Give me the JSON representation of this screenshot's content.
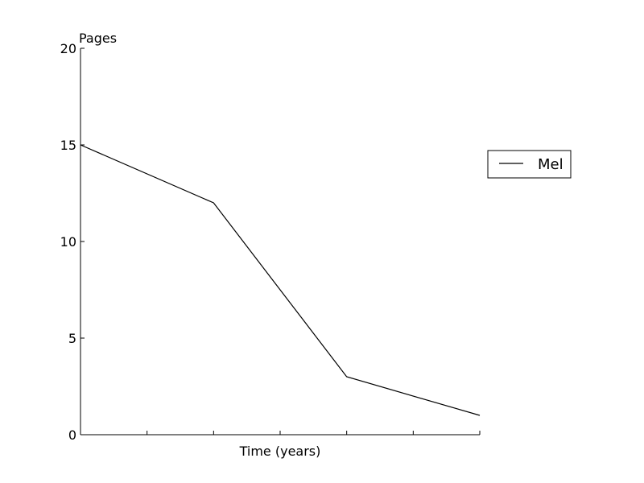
{
  "chart_data": {
    "type": "line",
    "title": "",
    "xlabel": "Time (years)",
    "ylabel": "Pages",
    "x": [
      0,
      1,
      2,
      3
    ],
    "xlim": [
      0,
      3
    ],
    "ylim": [
      0,
      20
    ],
    "yticks": [
      0,
      5,
      10,
      15,
      20
    ],
    "xticks": [
      0,
      0.5,
      1,
      1.5,
      2,
      2.5,
      3
    ],
    "x_tick_labels_shown": false,
    "grid": false,
    "legend_position": "right",
    "series": [
      {
        "name": "Mel",
        "color": "#000000",
        "values": [
          15,
          12,
          3,
          1
        ]
      }
    ]
  }
}
